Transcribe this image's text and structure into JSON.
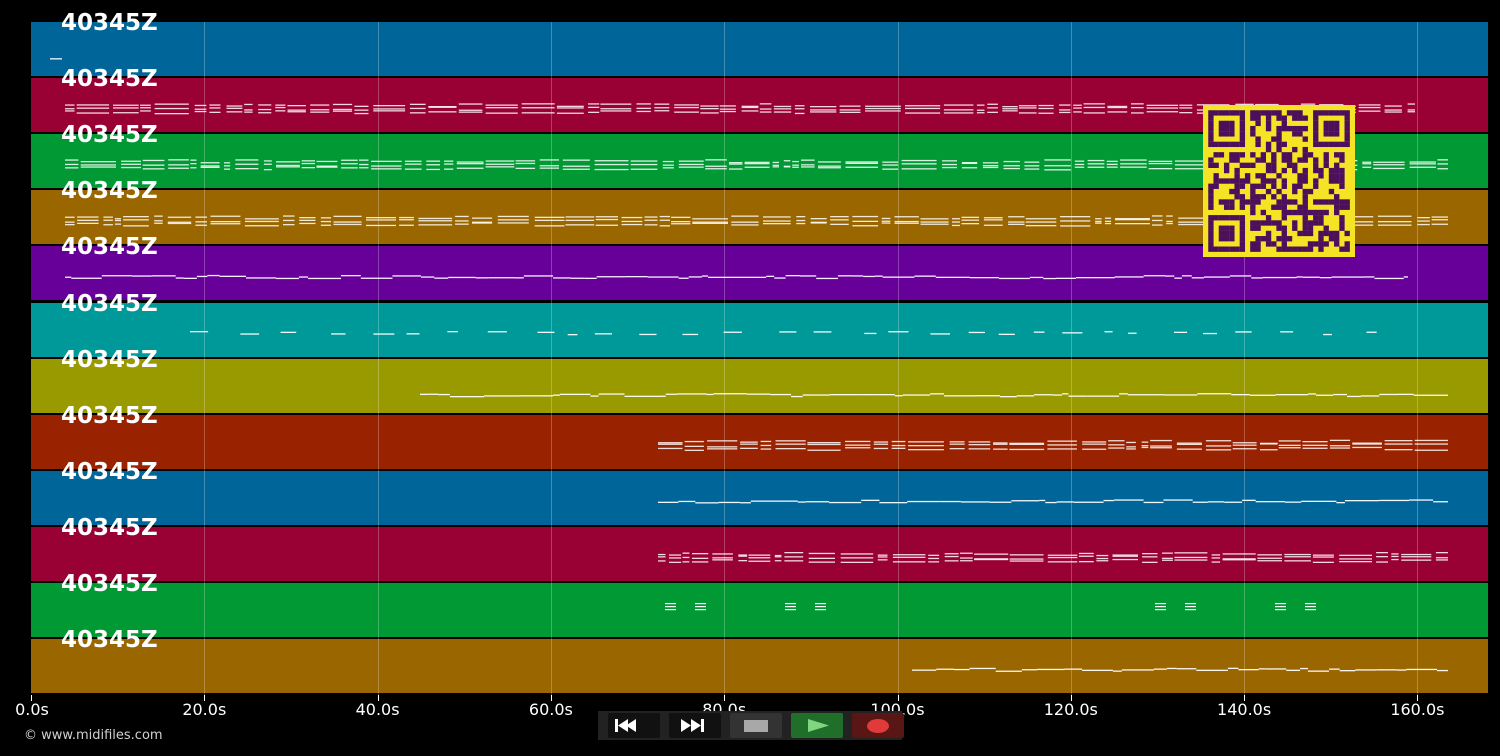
{
  "tracks": [
    {
      "label": "40345Z",
      "color": "#006699"
    },
    {
      "label": "40345Z",
      "color": "#990033"
    },
    {
      "label": "40345Z",
      "color": "#009933"
    },
    {
      "label": "40345Z",
      "color": "#996600"
    },
    {
      "label": "40345Z",
      "color": "#660099"
    },
    {
      "label": "40345Z",
      "color": "#009999"
    },
    {
      "label": "40345Z",
      "color": "#999900"
    },
    {
      "label": "40345Z",
      "color": "#992200"
    },
    {
      "label": "40345Z",
      "color": "#006699"
    },
    {
      "label": "40345Z",
      "color": "#990033"
    },
    {
      "label": "40345Z",
      "color": "#009933"
    },
    {
      "label": "40345Z",
      "color": "#996600"
    }
  ],
  "timeline": {
    "ticks": [
      "0.0s",
      "20.0s",
      "40.0s",
      "60.0s",
      "80.0s",
      "100.0s",
      "120.0s",
      "140.0s",
      "160.0s"
    ]
  },
  "controls": {
    "rewind_icon": "rewind-icon",
    "fast_forward_icon": "fast-forward-icon",
    "stop_icon": "stop-icon",
    "play_icon": "play-icon",
    "record_icon": "record-icon"
  },
  "footer": {
    "copyright": "© www.midifiles.com"
  },
  "qr": {
    "fg": "#4b0f5c",
    "bg": "#f5e326"
  }
}
